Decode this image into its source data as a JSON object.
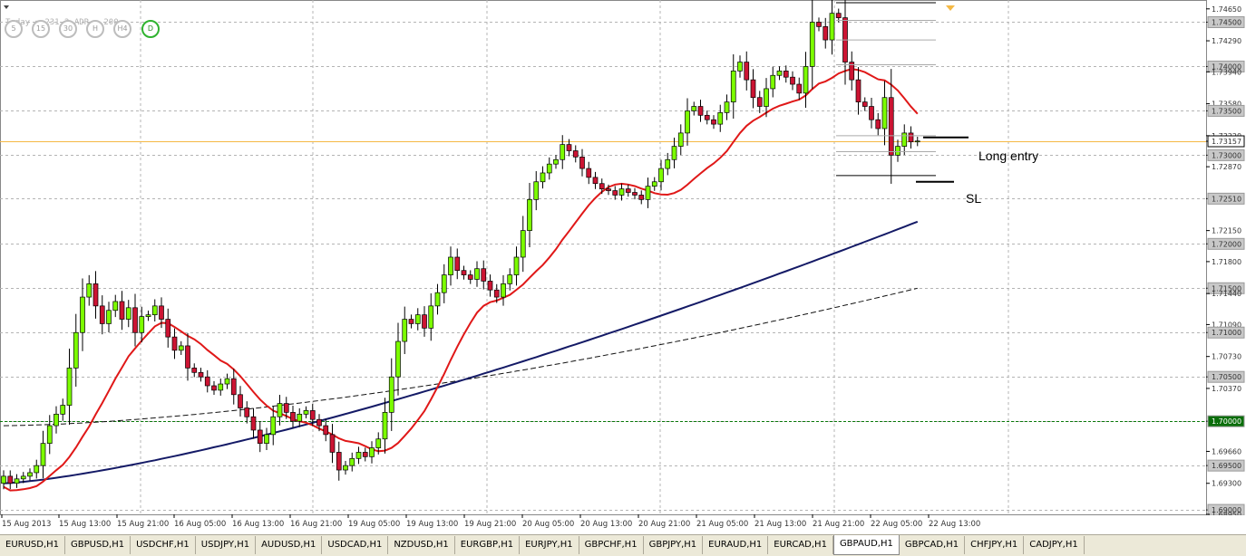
{
  "info": {
    "text": "Today = 231.2 ADR = 200"
  },
  "timeframes": [
    {
      "label": "5",
      "active": false
    },
    {
      "label": "15",
      "active": false
    },
    {
      "label": "30",
      "active": false
    },
    {
      "label": "H",
      "active": false
    },
    {
      "label": "H4",
      "active": false
    },
    {
      "label": "D",
      "active": true
    }
  ],
  "annotations": {
    "long_entry": "Long entry",
    "sl": "SL"
  },
  "price_axis": {
    "labels": [
      "1.74650",
      "1.74500",
      "1.74290",
      "1.74000",
      "1.73940",
      "1.73580",
      "1.73500",
      "1.73220",
      "1.73157",
      "1.73000",
      "1.72870",
      "1.72510",
      "1.72150",
      "1.72000",
      "1.71800",
      "1.71500",
      "1.71440",
      "1.71090",
      "1.71000",
      "1.70730",
      "1.70500",
      "1.70370",
      "1.70000",
      "1.69660",
      "1.69500",
      "1.69300",
      "1.69000",
      "1.68950"
    ],
    "boxed": [
      "1.74500",
      "1.74000",
      "1.73500",
      "1.73157",
      "1.73000",
      "1.72510",
      "1.72000",
      "1.71500",
      "1.71000",
      "1.70500",
      "1.70000",
      "1.69500",
      "1.69000"
    ]
  },
  "time_axis": [
    "15 Aug 2013",
    "15 Aug 13:00",
    "15 Aug 21:00",
    "16 Aug 05:00",
    "16 Aug 13:00",
    "16 Aug 21:00",
    "19 Aug 05:00",
    "19 Aug 13:00",
    "19 Aug 21:00",
    "20 Aug 05:00",
    "20 Aug 13:00",
    "20 Aug 21:00",
    "21 Aug 05:00",
    "21 Aug 13:00",
    "21 Aug 21:00",
    "22 Aug 05:00",
    "22 Aug 13:00"
  ],
  "tabs": [
    "EURUSD,H1",
    "GBPUSD,H1",
    "USDCHF,H1",
    "USDJPY,H1",
    "AUDUSD,H1",
    "USDCAD,H1",
    "NZDUSD,H1",
    "EURGBP,H1",
    "EURJPY,H1",
    "GBPCHF,H1",
    "GBPJPY,H1",
    "EURAUD,H1",
    "EURCAD,H1",
    "GBPAUD,H1",
    "GBPCAD,H1",
    "CHFJPY,H1",
    "CADJPY,H1"
  ],
  "active_tab": "GBPAUD,H1",
  "chart_data": {
    "type": "candlestick",
    "symbol": "GBPAUD",
    "timeframe": "H1",
    "current_price": 1.73157,
    "ylim": [
      1.6895,
      1.7475
    ],
    "closes": [
      1.6938,
      1.693,
      1.6935,
      1.6938,
      1.6942,
      1.695,
      1.6975,
      1.6995,
      1.7008,
      1.7018,
      1.706,
      1.71,
      1.714,
      1.7155,
      1.713,
      1.711,
      1.7125,
      1.7135,
      1.7115,
      1.7128,
      1.71,
      1.7118,
      1.712,
      1.713,
      1.7115,
      1.7095,
      1.708,
      1.7085,
      1.706,
      1.7055,
      1.705,
      1.704,
      1.7035,
      1.7042,
      1.7048,
      1.703,
      1.7015,
      1.7005,
      1.699,
      1.6975,
      1.6985,
      1.7005,
      1.702,
      1.701,
      1.7,
      1.7008,
      1.7012,
      1.7002,
      1.6995,
      1.6985,
      1.6965,
      1.6945,
      1.695,
      1.6958,
      1.6965,
      1.696,
      1.697,
      1.698,
      1.701,
      1.705,
      1.709,
      1.7115,
      1.711,
      1.712,
      1.7105,
      1.713,
      1.7145,
      1.7165,
      1.7185,
      1.717,
      1.7165,
      1.716,
      1.7172,
      1.7158,
      1.7148,
      1.714,
      1.7155,
      1.7165,
      1.7185,
      1.7215,
      1.725,
      1.727,
      1.728,
      1.729,
      1.7295,
      1.7312,
      1.7305,
      1.7298,
      1.7285,
      1.7275,
      1.7268,
      1.7262,
      1.726,
      1.7255,
      1.7262,
      1.7258,
      1.7255,
      1.725,
      1.7265,
      1.727,
      1.7285,
      1.7295,
      1.731,
      1.7325,
      1.735,
      1.7355,
      1.7345,
      1.734,
      1.7335,
      1.7348,
      1.736,
      1.7395,
      1.7405,
      1.7385,
      1.7365,
      1.7355,
      1.7375,
      1.739,
      1.7395,
      1.7388,
      1.738,
      1.737,
      1.74,
      1.745,
      1.7445,
      1.743,
      1.746,
      1.7455,
      1.7405,
      1.7385,
      1.736,
      1.7355,
      1.734,
      1.733,
      1.7365,
      1.73,
      1.731,
      1.7325,
      1.7315,
      1.7316
    ]
  }
}
